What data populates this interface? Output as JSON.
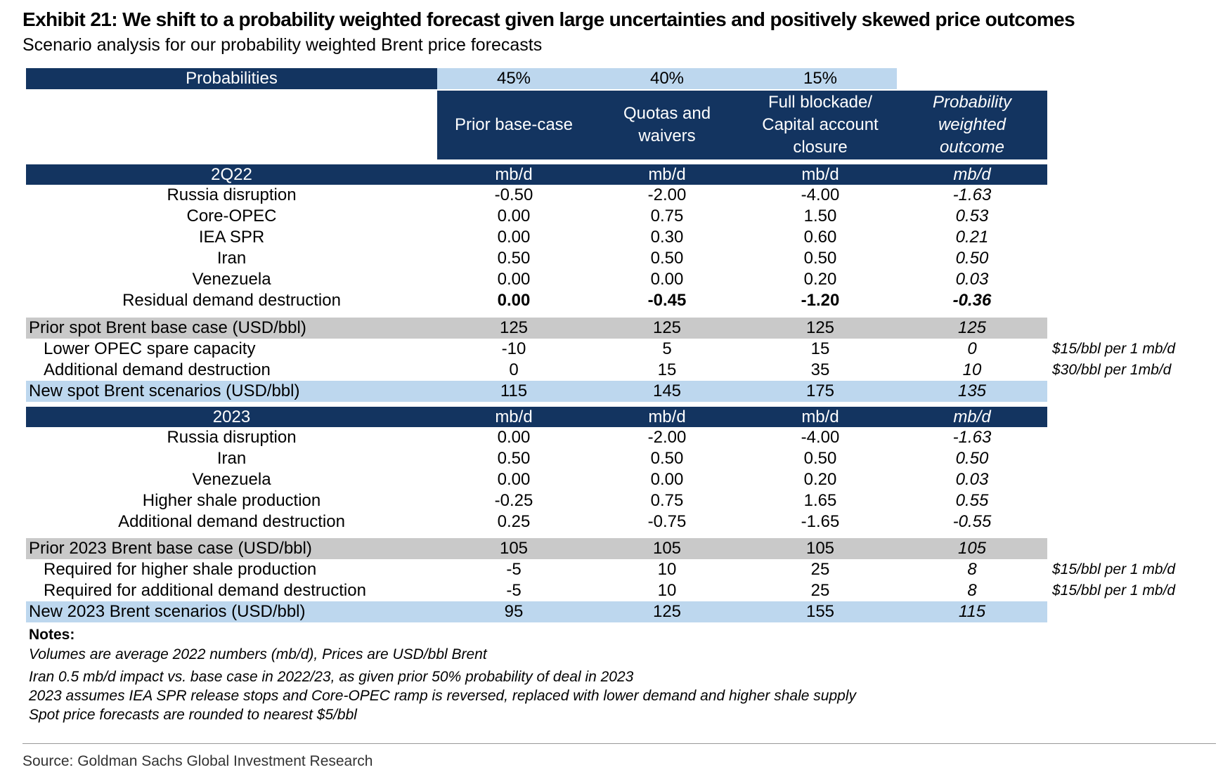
{
  "title": "Exhibit 21: We shift to a probability weighted forecast given large uncertainties and positively skewed price outcomes",
  "subtitle": "Scenario analysis for our probability weighted Brent price forecasts",
  "probabilities": {
    "label": "Probabilities",
    "values": [
      "45%",
      "40%",
      "15%"
    ]
  },
  "scenario_headers": [
    [
      "Prior base-case"
    ],
    [
      "Quotas and",
      "waivers"
    ],
    [
      "Full blockade/",
      "Capital account",
      "closure"
    ],
    [
      "Probability",
      "weighted",
      "outcome"
    ]
  ],
  "section_2q22": {
    "label": "2Q22",
    "units": [
      "mb/d",
      "mb/d",
      "mb/d",
      "mb/d"
    ]
  },
  "rows_2q22": [
    {
      "label": "Russia disruption",
      "values": [
        "-0.50",
        "-2.00",
        "-4.00",
        "-1.63"
      ]
    },
    {
      "label": "Core-OPEC",
      "values": [
        "0.00",
        "0.75",
        "1.50",
        "0.53"
      ]
    },
    {
      "label": "IEA SPR",
      "values": [
        "0.00",
        "0.30",
        "0.60",
        "0.21"
      ]
    },
    {
      "label": "Iran",
      "values": [
        "0.50",
        "0.50",
        "0.50",
        "0.50"
      ]
    },
    {
      "label": "Venezuela",
      "values": [
        "0.00",
        "0.00",
        "0.20",
        "0.03"
      ]
    },
    {
      "label": "Residual demand destruction",
      "values": [
        "0.00",
        "-0.45",
        "-1.20",
        "-0.36"
      ]
    }
  ],
  "prior_spot": {
    "label": "Prior spot Brent base case (USD/bbl)",
    "values": [
      "125",
      "125",
      "125",
      "125"
    ]
  },
  "spot_adjustments": [
    {
      "label": "Lower OPEC spare capacity",
      "values": [
        "-10",
        "5",
        "15",
        "0"
      ],
      "note": "$15/bbl per 1 mb/d"
    },
    {
      "label": "Additional demand destruction",
      "values": [
        "0",
        "15",
        "35",
        "10"
      ],
      "note": "$30/bbl per 1mb/d"
    }
  ],
  "new_spot": {
    "label": "New spot Brent scenarios (USD/bbl)",
    "values": [
      "115",
      "145",
      "175",
      "135"
    ]
  },
  "section_2023": {
    "label": "2023",
    "units": [
      "mb/d",
      "mb/d",
      "mb/d",
      "mb/d"
    ]
  },
  "rows_2023": [
    {
      "label": "Russia disruption",
      "values": [
        "0.00",
        "-2.00",
        "-4.00",
        "-1.63"
      ]
    },
    {
      "label": "Iran",
      "values": [
        "0.50",
        "0.50",
        "0.50",
        "0.50"
      ]
    },
    {
      "label": "Venezuela",
      "values": [
        "0.00",
        "0.00",
        "0.20",
        "0.03"
      ]
    },
    {
      "label": "Higher shale production",
      "values": [
        "-0.25",
        "0.75",
        "1.65",
        "0.55"
      ]
    },
    {
      "label": "Additional demand destruction",
      "values": [
        "0.25",
        "-0.75",
        "-1.65",
        "-0.55"
      ]
    }
  ],
  "prior_2023": {
    "label": "Prior 2023 Brent base case (USD/bbl)",
    "values": [
      "105",
      "105",
      "105",
      "105"
    ]
  },
  "adjustments_2023": [
    {
      "label": "Required for higher shale production",
      "values": [
        "-5",
        "10",
        "25",
        "8"
      ],
      "note": "$15/bbl per 1 mb/d"
    },
    {
      "label": "Required for additional demand destruction",
      "values": [
        "-5",
        "10",
        "25",
        "8"
      ],
      "note": "$15/bbl per 1 mb/d"
    }
  ],
  "new_2023": {
    "label": "New 2023 Brent scenarios (USD/bbl)",
    "values": [
      "95",
      "125",
      "155",
      "115"
    ]
  },
  "notes": {
    "title": "Notes:",
    "lines": [
      "Volumes are average 2022 numbers (mb/d), Prices are USD/bbl Brent",
      "Iran 0.5 mb/d impact vs. base case in 2022/23, as given prior 50% probability of deal in 2023",
      "2023 assumes IEA SPR release stops and Core-OPEC ramp is reversed, replaced with lower demand and higher shale supply",
      "Spot price forecasts are rounded to nearest $5/bbl"
    ]
  },
  "source": "Source: Goldman Sachs Global Investment Research",
  "colors": {
    "navy": "#133460",
    "light_blue": "#bdd7ee",
    "gray": "#c9c9c9"
  }
}
